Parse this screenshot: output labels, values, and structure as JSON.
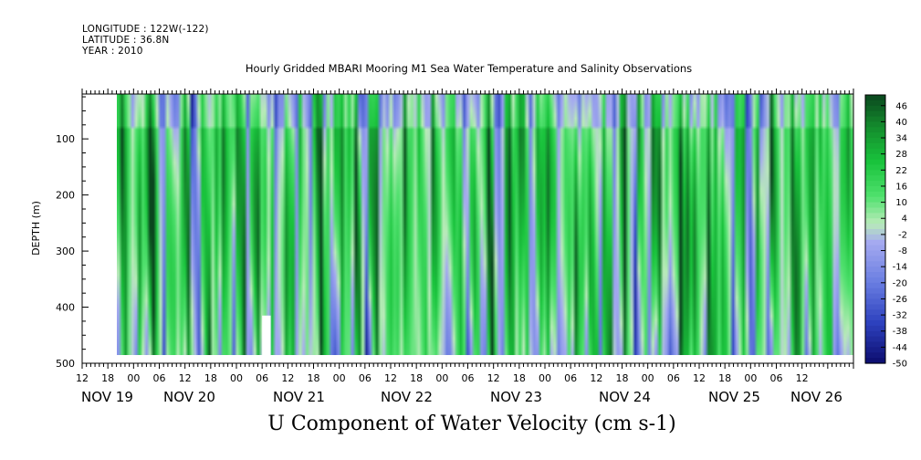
{
  "header": {
    "longitude": "LONGITUDE : 122W(-122)",
    "latitude": "LATITUDE : 36.8N",
    "year": "YEAR : 2010"
  },
  "chart_data": {
    "type": "heatmap",
    "title": "Hourly Gridded MBARI Mooring M1 Sea Water Temperature and Salinity Observations",
    "xlabel": "U Component of Water Velocity (cm s-1)",
    "ylabel": "DEPTH (m)",
    "ylim": [
      500,
      0
    ],
    "y_ticks": [
      100,
      200,
      300,
      400,
      500
    ],
    "x_range_hours": [
      -12,
      168
    ],
    "data_x_range_hours": [
      -4,
      168
    ],
    "data_depth_range": [
      20,
      485
    ],
    "hour_tick_labels": [
      "12",
      "18",
      "00",
      "06",
      "12",
      "18",
      "00",
      "06",
      "12",
      "18",
      "00",
      "06",
      "12",
      "18",
      "00",
      "06",
      "12",
      "18",
      "00",
      "06",
      "12",
      "18",
      "00",
      "06",
      "12",
      "18",
      "00",
      "06",
      "12"
    ],
    "day_labels": [
      "NOV 19",
      "NOV 20",
      "NOV 21",
      "NOV 22",
      "NOV 23",
      "NOV 24",
      "NOV 25",
      "NOV 26"
    ],
    "colorbar": {
      "min": -50,
      "max": 50,
      "labels": [
        "46",
        "40",
        "34",
        "28",
        "22",
        "16",
        "10",
        "4",
        "-2",
        "-8",
        "-14",
        "-20",
        "-26",
        "-32",
        "-38",
        "-44",
        "-50"
      ]
    },
    "missing_block": {
      "hours": [
        30,
        32
      ],
      "depth": [
        415,
        490
      ]
    }
  }
}
